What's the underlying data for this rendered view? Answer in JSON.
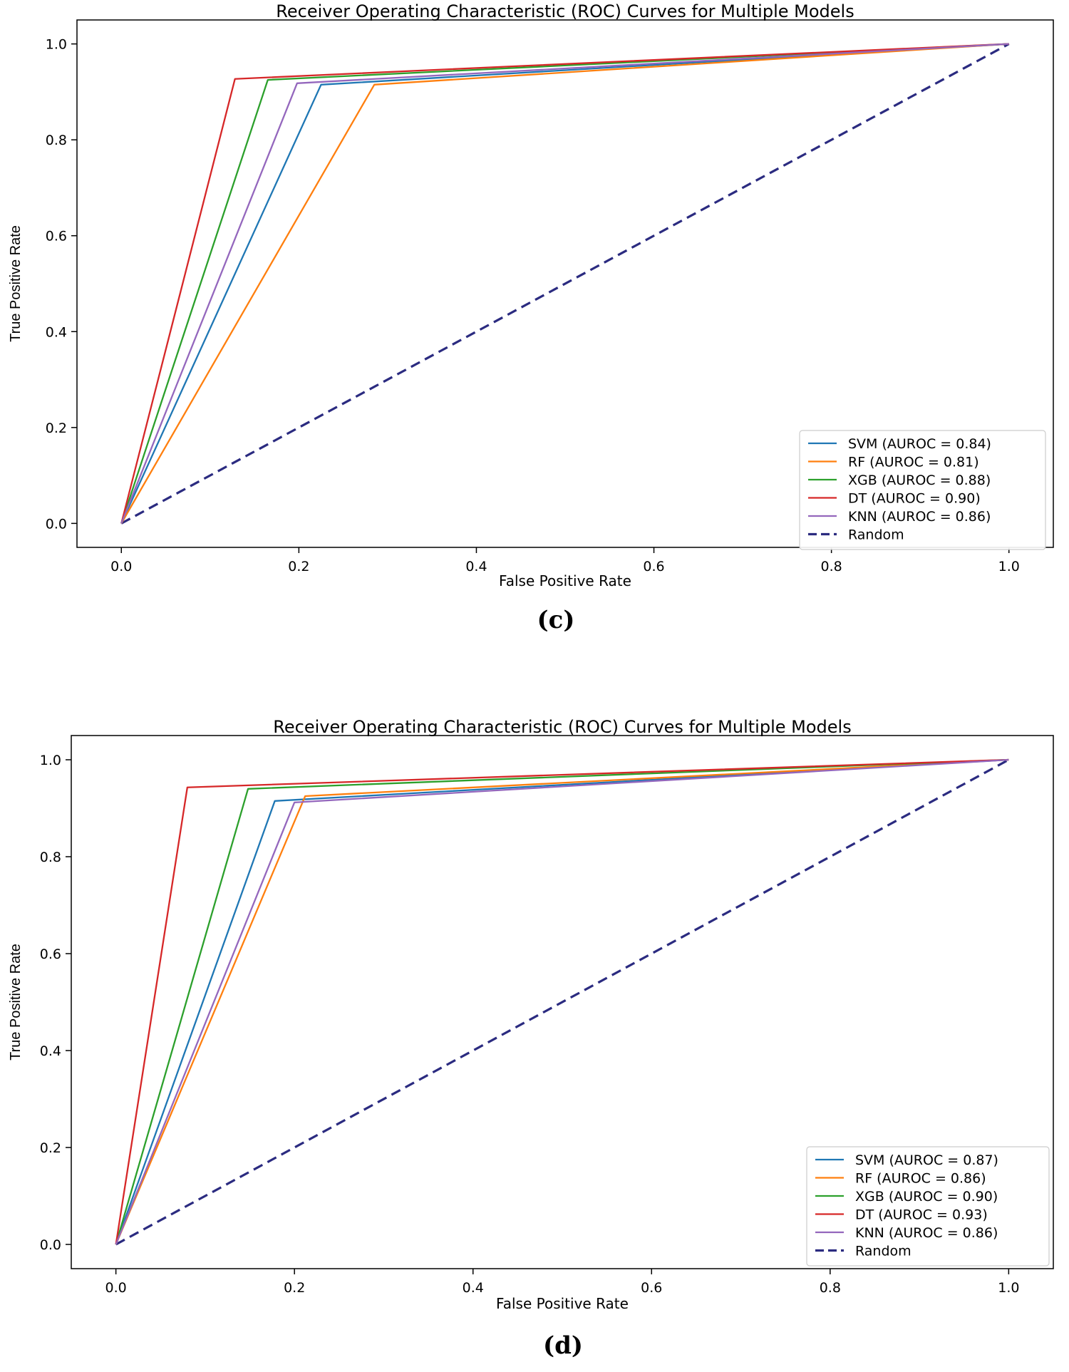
{
  "panels": [
    {
      "label": "(c)",
      "chart_data": {
        "type": "line",
        "title": "Receiver Operating Characteristic (ROC) Curves for Multiple Models",
        "xlabel": "False Positive Rate",
        "ylabel": "True Positive Rate",
        "xlim": [
          -0.05,
          1.05
        ],
        "ylim": [
          -0.05,
          1.05
        ],
        "xticks": [
          "0.0",
          "0.2",
          "0.4",
          "0.6",
          "0.8",
          "1.0"
        ],
        "yticks": [
          "0.0",
          "0.2",
          "0.4",
          "0.6",
          "0.8",
          "1.0"
        ],
        "grid": false,
        "legend_position": "lower-right",
        "series": [
          {
            "name": "SVM (AUROC = 0.84)",
            "color": "#1f77b4",
            "dash": "solid",
            "x": [
              0,
              0.225,
              1
            ],
            "y": [
              0,
              0.915,
              1
            ]
          },
          {
            "name": "RF (AUROC = 0.81)",
            "color": "#ff7f0e",
            "dash": "solid",
            "x": [
              0,
              0.285,
              1
            ],
            "y": [
              0,
              0.915,
              1
            ]
          },
          {
            "name": "XGB (AUROC = 0.88)",
            "color": "#2ca02c",
            "dash": "solid",
            "x": [
              0,
              0.165,
              1
            ],
            "y": [
              0,
              0.925,
              1
            ]
          },
          {
            "name": "DT (AUROC = 0.90)",
            "color": "#d62728",
            "dash": "solid",
            "x": [
              0,
              0.128,
              1
            ],
            "y": [
              0,
              0.927,
              1
            ]
          },
          {
            "name": "KNN (AUROC = 0.86)",
            "color": "#9467bd",
            "dash": "solid",
            "x": [
              0,
              0.198,
              1
            ],
            "y": [
              0,
              0.918,
              1
            ]
          },
          {
            "name": "Random",
            "color": "#2b2b80",
            "dash": "dashed",
            "x": [
              0,
              1
            ],
            "y": [
              0,
              1
            ]
          }
        ]
      }
    },
    {
      "label": "(d)",
      "chart_data": {
        "type": "line",
        "title": "Receiver Operating Characteristic (ROC) Curves for Multiple Models",
        "xlabel": "False Positive Rate",
        "ylabel": "True Positive Rate",
        "xlim": [
          -0.05,
          1.05
        ],
        "ylim": [
          -0.05,
          1.05
        ],
        "xticks": [
          "0.0",
          "0.2",
          "0.4",
          "0.6",
          "0.8",
          "1.0"
        ],
        "yticks": [
          "0.0",
          "0.2",
          "0.4",
          "0.6",
          "0.8",
          "1.0"
        ],
        "grid": false,
        "legend_position": "lower-right",
        "series": [
          {
            "name": "SVM (AUROC = 0.87)",
            "color": "#1f77b4",
            "dash": "solid",
            "x": [
              0,
              0.178,
              1
            ],
            "y": [
              0,
              0.915,
              1
            ]
          },
          {
            "name": "RF (AUROC = 0.86)",
            "color": "#ff7f0e",
            "dash": "solid",
            "x": [
              0,
              0.212,
              1
            ],
            "y": [
              0,
              0.925,
              1
            ]
          },
          {
            "name": "XGB (AUROC = 0.90)",
            "color": "#2ca02c",
            "dash": "solid",
            "x": [
              0,
              0.148,
              1
            ],
            "y": [
              0,
              0.94,
              1
            ]
          },
          {
            "name": "DT (AUROC = 0.93)",
            "color": "#d62728",
            "dash": "solid",
            "x": [
              0,
              0.08,
              1
            ],
            "y": [
              0,
              0.943,
              1
            ]
          },
          {
            "name": "KNN (AUROC = 0.86)",
            "color": "#9467bd",
            "dash": "solid",
            "x": [
              0,
              0.2,
              1
            ],
            "y": [
              0,
              0.912,
              1
            ]
          },
          {
            "name": "Random",
            "color": "#2b2b80",
            "dash": "dashed",
            "x": [
              0,
              1
            ],
            "y": [
              0,
              1
            ]
          }
        ]
      }
    }
  ]
}
